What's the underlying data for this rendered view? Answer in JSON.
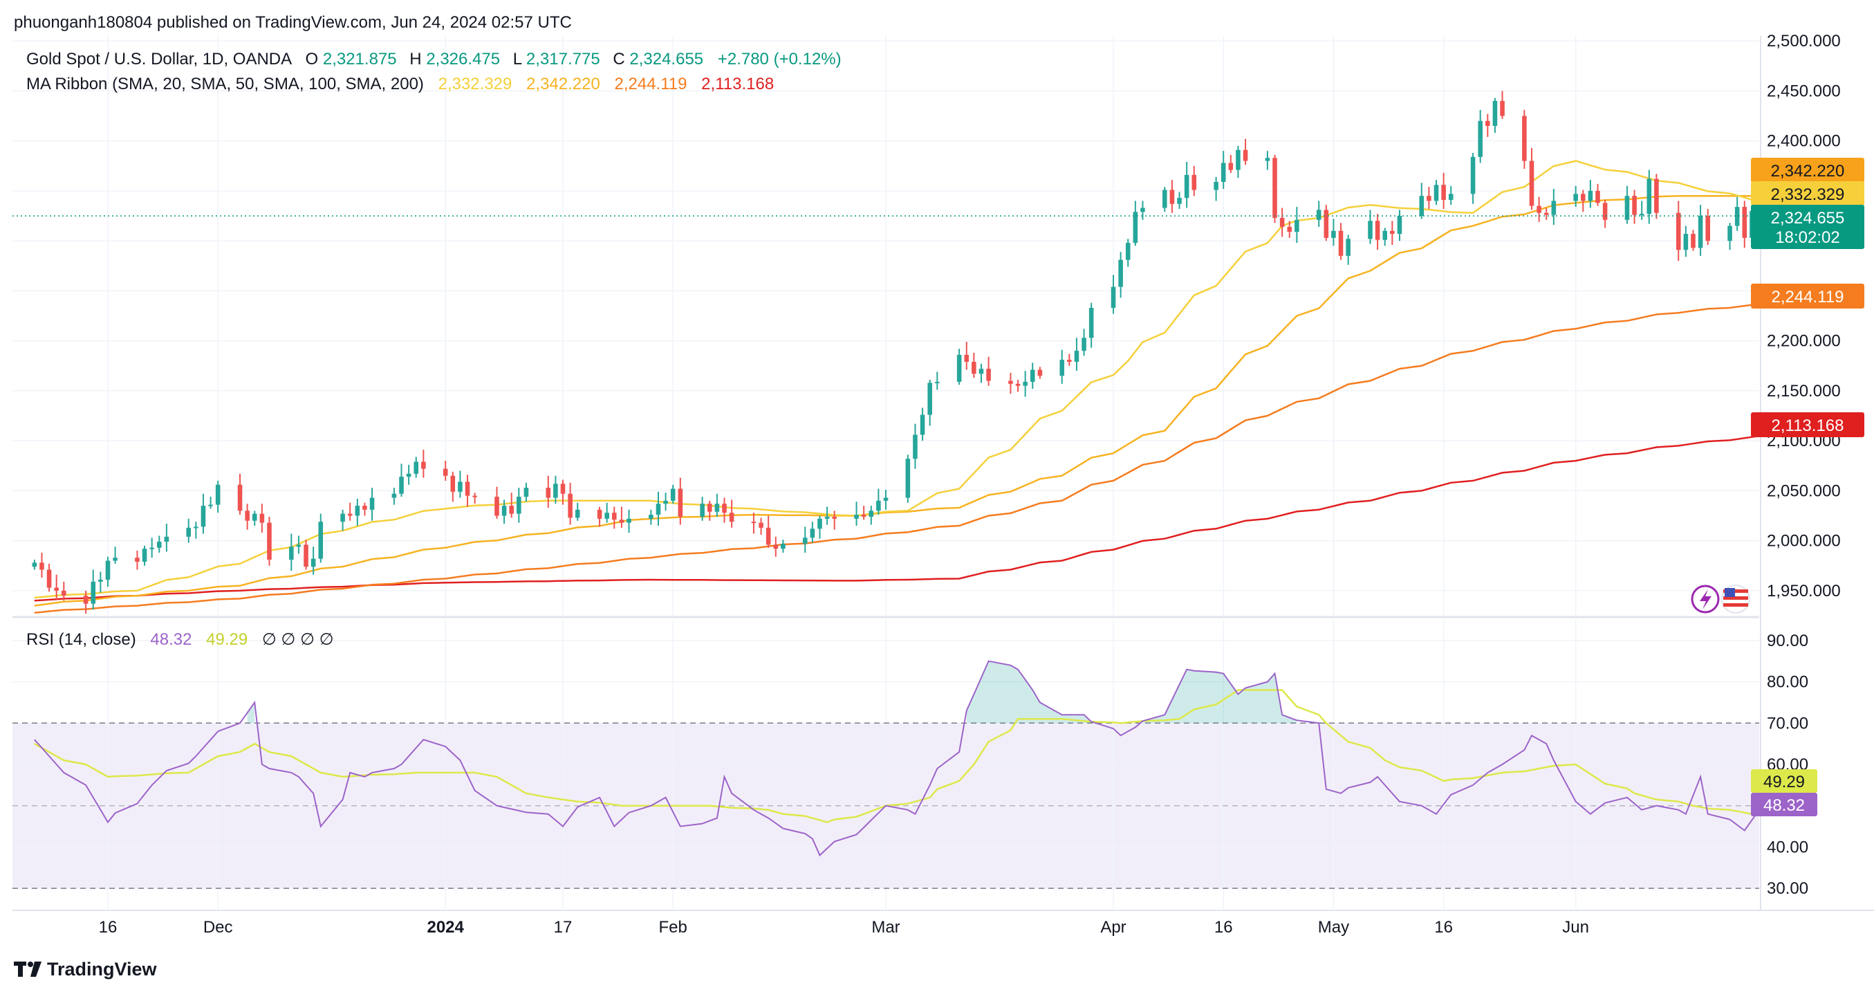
{
  "header": {
    "publisher": "phuonganh180804 published on TradingView.com, Jun 24, 2024 02:57 UTC"
  },
  "legend": {
    "symbol": "Gold Spot / U.S. Dollar, 1D, OANDA",
    "o_label": "O",
    "o": "2,321.875",
    "h_label": "H",
    "h": "2,326.475",
    "l_label": "L",
    "l": "2,317.775",
    "c_label": "C",
    "c": "2,324.655",
    "change": "+2.780 (+0.12%)",
    "ma_title": "MA Ribbon (SMA, 20, SMA, 50, SMA, 100, SMA, 200)",
    "ma_values": [
      "2,332.329",
      "2,342.220",
      "2,244.119",
      "2,113.168"
    ],
    "rsi_title": "RSI (14, close)",
    "rsi_value": "48.32",
    "rsi_ma_value": "49.29",
    "rsi_extra": "∅ ∅ ∅ ∅"
  },
  "colors": {
    "up": "#26a69a",
    "down": "#ef5350",
    "sma20": "#f5d03b",
    "sma50": "#f7b221",
    "sma100": "#f57c1f",
    "sma200": "#e01f1f",
    "rsi": "#9c63c9",
    "rsi_ma": "#dde84a",
    "rsi_band": "#ede7f6",
    "grid": "#f0f3fa",
    "text": "#131722",
    "current": "#089981"
  },
  "price_labels": {
    "sma100": "2,244.119",
    "sma50": "2,342.220",
    "sma20": "2,332.329",
    "close": "2,324.655",
    "countdown": "18:02:02",
    "sma200": "2,113.168"
  },
  "rsi_labels": {
    "rsi_ma": "49.29",
    "rsi": "48.32"
  },
  "footer": {
    "brand": "TradingView"
  },
  "chart_data": {
    "type": "candlestick",
    "title": "Gold Spot / U.S. Dollar, 1D, OANDA",
    "price_axis": {
      "ylim": [
        1925,
        2505
      ],
      "ticks": [
        "1,950.000",
        "2,000.000",
        "2,050.000",
        "2,100.000",
        "2,150.000",
        "2,200.000",
        "2,250.000",
        "2,300.000",
        "2,350.000",
        "2,400.000",
        "2,450.000",
        "2,500.000"
      ],
      "tick_values": [
        1950,
        2000,
        2050,
        2100,
        2150,
        2200,
        2250,
        2300,
        2350,
        2400,
        2450,
        2500
      ]
    },
    "rsi_axis": {
      "ylim": [
        25,
        95
      ],
      "ticks": [
        "30.00",
        "40.00",
        "50.00",
        "60.00",
        "70.00",
        "80.00",
        "90.00"
      ],
      "tick_values": [
        30,
        40,
        50,
        60,
        70,
        80,
        90
      ],
      "bands": [
        30,
        70
      ],
      "middle": 50
    },
    "x_axis": {
      "labels": [
        "16",
        "Dec",
        "2024",
        "17",
        "Feb",
        "Mar",
        "Apr",
        "16",
        "May",
        "16",
        "Jun"
      ],
      "label_dates": [
        "2023-11-16",
        "2023-12-01",
        "2024-01-01",
        "2024-01-17",
        "2024-02-01",
        "2024-03-01",
        "2024-04-01",
        "2024-04-16",
        "2024-05-01",
        "2024-05-16",
        "2024-06-03"
      ],
      "bold": [
        "2024"
      ],
      "range": [
        "2023-11-03",
        "2024-06-28"
      ]
    },
    "candles_start_date": "2023-11-06",
    "closes": [
      1978,
      1971,
      1953,
      1950,
      1945,
      1937,
      1959,
      1961,
      1980,
      1983,
      1979,
      1992,
      1993,
      1999,
      2004,
      2013,
      2014,
      2035,
      2036,
      2056,
      2030,
      2020,
      2027,
      2018,
      1981,
      1994,
      1996,
      1974,
      1982,
      2019,
      2027,
      2025,
      2035,
      2031,
      2043,
      2047,
      2064,
      2067,
      2079,
      2072,
      2065,
      2049,
      2059,
      2045,
      2044,
      2025,
      2035,
      2027,
      2044,
      2053,
      2043,
      2057,
      2047,
      2023,
      2031,
      2022,
      2028,
      2021,
      2018,
      2022,
      2026,
      2037,
      2040,
      2052,
      2024,
      2037,
      2029,
      2037,
      2028,
      2019,
      2018,
      2013,
      1996,
      1992,
      1997,
      2003,
      2012,
      2022,
      2024,
      2022,
      2026,
      2024,
      2030,
      2040,
      2043,
      2082,
      2106,
      2126,
      2158,
      2159,
      2186,
      2179,
      2167,
      2172,
      2160,
      2157,
      2155,
      2159,
      2171,
      2165,
      2181,
      2179,
      2190,
      2203,
      2233,
      2254,
      2281,
      2298,
      2329,
      2333,
      2351,
      2337,
      2343,
      2366,
      2351,
      2359,
      2378,
      2371,
      2391,
      2380,
      2383,
      2323,
      2314,
      2309,
      2321,
      2331,
      2303,
      2310,
      2285,
      2302,
      2320,
      2301,
      2310,
      2307,
      2325,
      2345,
      2340,
      2356,
      2341,
      2347,
      2384,
      2420,
      2415,
      2440,
      2425,
      2380,
      2335,
      2328,
      2326,
      2340,
      2347,
      2340,
      2350,
      2338,
      2321,
      2345,
      2326,
      2327,
      2362,
      2328,
      2291,
      2307,
      2293,
      2325,
      2300,
      2315,
      2334,
      2303,
      2330,
      2338,
      2319,
      2368,
      2323,
      2325
    ],
    "sma20_points": [
      [
        0,
        1943
      ],
      [
        10,
        1950
      ],
      [
        20,
        1977
      ],
      [
        30,
        2010
      ],
      [
        40,
        2032
      ],
      [
        50,
        2040
      ],
      [
        60,
        2040
      ],
      [
        70,
        2032
      ],
      [
        80,
        2025
      ],
      [
        85,
        2030
      ],
      [
        90,
        2052
      ],
      [
        100,
        2130
      ],
      [
        107,
        2180
      ],
      [
        115,
        2255
      ],
      [
        122,
        2315
      ],
      [
        130,
        2336
      ],
      [
        140,
        2328
      ],
      [
        150,
        2380
      ],
      [
        160,
        2358
      ],
      [
        170,
        2337
      ],
      [
        177,
        2332
      ]
    ],
    "sma50_points": [
      [
        0,
        1935
      ],
      [
        20,
        1955
      ],
      [
        40,
        1993
      ],
      [
        60,
        2022
      ],
      [
        70,
        2026
      ],
      [
        80,
        2025
      ],
      [
        90,
        2033
      ],
      [
        100,
        2065
      ],
      [
        110,
        2110
      ],
      [
        120,
        2195
      ],
      [
        130,
        2270
      ],
      [
        140,
        2315
      ],
      [
        150,
        2338
      ],
      [
        160,
        2345
      ],
      [
        170,
        2345
      ],
      [
        177,
        2342
      ]
    ],
    "sma100_points": [
      [
        0,
        1928
      ],
      [
        20,
        1942
      ],
      [
        40,
        1962
      ],
      [
        60,
        1983
      ],
      [
        80,
        2002
      ],
      [
        90,
        2015
      ],
      [
        100,
        2040
      ],
      [
        110,
        2080
      ],
      [
        120,
        2125
      ],
      [
        130,
        2160
      ],
      [
        140,
        2190
      ],
      [
        150,
        2212
      ],
      [
        160,
        2228
      ],
      [
        170,
        2238
      ],
      [
        177,
        2244
      ]
    ],
    "sma200_points": [
      [
        0,
        1940
      ],
      [
        20,
        1950
      ],
      [
        40,
        1958
      ],
      [
        60,
        1961
      ],
      [
        80,
        1960
      ],
      [
        90,
        1962
      ],
      [
        100,
        1980
      ],
      [
        110,
        2002
      ],
      [
        120,
        2022
      ],
      [
        130,
        2040
      ],
      [
        140,
        2060
      ],
      [
        150,
        2080
      ],
      [
        160,
        2095
      ],
      [
        170,
        2106
      ],
      [
        177,
        2113
      ]
    ],
    "rsi_points": [
      [
        0,
        66
      ],
      [
        4,
        58
      ],
      [
        8,
        46
      ],
      [
        12,
        55
      ],
      [
        16,
        62
      ],
      [
        20,
        70
      ],
      [
        22,
        75
      ],
      [
        23,
        60
      ],
      [
        26,
        57
      ],
      [
        28,
        53
      ],
      [
        29,
        45
      ],
      [
        31,
        58
      ],
      [
        33,
        57
      ],
      [
        36,
        60
      ],
      [
        39,
        66
      ],
      [
        42,
        61
      ],
      [
        45,
        50
      ],
      [
        50,
        48
      ],
      [
        52,
        45
      ],
      [
        55,
        52
      ],
      [
        57,
        45
      ],
      [
        60,
        50
      ],
      [
        62,
        52
      ],
      [
        64,
        45
      ],
      [
        67,
        47
      ],
      [
        68,
        57
      ],
      [
        70,
        49
      ],
      [
        72,
        47
      ],
      [
        76,
        42
      ],
      [
        77,
        38
      ],
      [
        80,
        43
      ],
      [
        84,
        50
      ],
      [
        86,
        48
      ],
      [
        88,
        55
      ],
      [
        90,
        63
      ],
      [
        91,
        73
      ],
      [
        94,
        85
      ],
      [
        96,
        83
      ],
      [
        98,
        78
      ],
      [
        100,
        72
      ],
      [
        103,
        72
      ],
      [
        106,
        67
      ],
      [
        108,
        69
      ],
      [
        110,
        72
      ],
      [
        113,
        83
      ],
      [
        116,
        82
      ],
      [
        118,
        77
      ],
      [
        120,
        80
      ],
      [
        121,
        82
      ],
      [
        122,
        72
      ],
      [
        125,
        70
      ],
      [
        126,
        54
      ],
      [
        128,
        53
      ],
      [
        131,
        57
      ],
      [
        134,
        51
      ],
      [
        137,
        48
      ],
      [
        140,
        55
      ],
      [
        142,
        58
      ],
      [
        144,
        60
      ],
      [
        146,
        67
      ],
      [
        148,
        65
      ],
      [
        149,
        61
      ],
      [
        150,
        51
      ],
      [
        152,
        48
      ],
      [
        155,
        52
      ],
      [
        157,
        49
      ],
      [
        159,
        50
      ],
      [
        161,
        48
      ],
      [
        163,
        57
      ],
      [
        164,
        48
      ],
      [
        167,
        44
      ],
      [
        169,
        49
      ],
      [
        171,
        52
      ],
      [
        173,
        55
      ],
      [
        175,
        47
      ],
      [
        177,
        48
      ]
    ],
    "rsi_ma_points": [
      [
        0,
        65
      ],
      [
        8,
        57
      ],
      [
        15,
        58
      ],
      [
        22,
        65
      ],
      [
        30,
        57
      ],
      [
        38,
        58
      ],
      [
        44,
        58
      ],
      [
        50,
        52
      ],
      [
        58,
        50
      ],
      [
        66,
        50
      ],
      [
        72,
        49
      ],
      [
        78,
        46
      ],
      [
        84,
        50
      ],
      [
        88,
        52
      ],
      [
        92,
        60
      ],
      [
        96,
        71
      ],
      [
        100,
        71
      ],
      [
        106,
        70
      ],
      [
        112,
        71
      ],
      [
        118,
        78
      ],
      [
        122,
        78
      ],
      [
        126,
        70
      ],
      [
        132,
        61
      ],
      [
        138,
        56
      ],
      [
        144,
        58
      ],
      [
        150,
        60
      ],
      [
        156,
        53
      ],
      [
        162,
        50
      ],
      [
        168,
        48
      ],
      [
        174,
        49
      ],
      [
        177,
        49
      ]
    ]
  }
}
